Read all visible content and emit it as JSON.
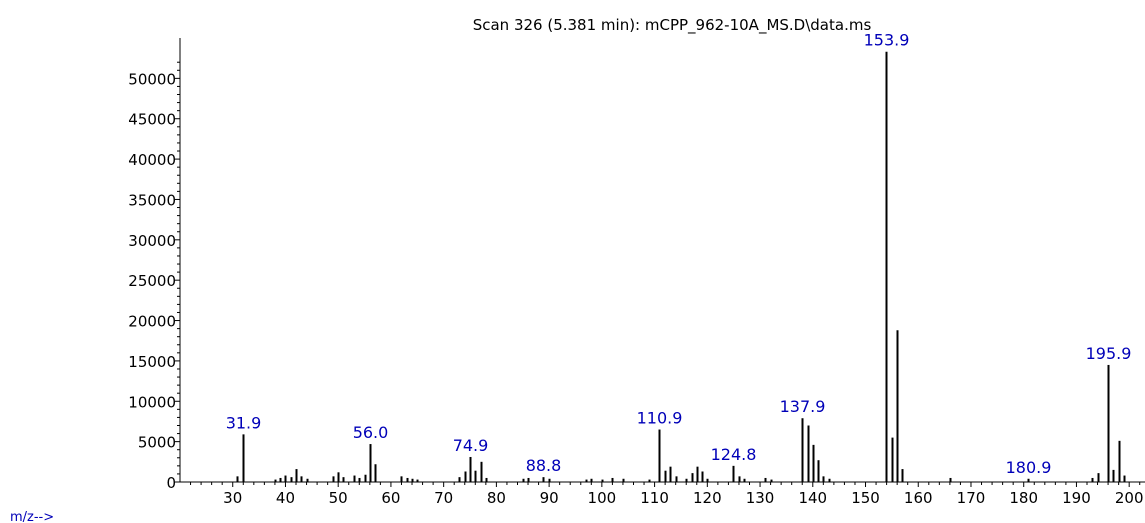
{
  "chart_data": {
    "type": "bar",
    "title": "Scan 326 (5.381 min): mCPP_962-10A_MS.D\\data.ms",
    "xlabel": "m/z-->",
    "ylabel": "",
    "xlim": [
      20,
      203
    ],
    "ylim": [
      0,
      55000
    ],
    "x_ticks": [
      30,
      40,
      50,
      60,
      70,
      80,
      90,
      100,
      110,
      120,
      130,
      140,
      150,
      160,
      170,
      180,
      190,
      200
    ],
    "y_ticks": [
      0,
      5000,
      10000,
      15000,
      20000,
      25000,
      30000,
      35000,
      40000,
      45000,
      50000
    ],
    "grid": false,
    "legend": "none",
    "colors": {
      "peaks": "#000000",
      "labels": "#0000b8",
      "axis": "#000000"
    },
    "series": [
      {
        "peaks": [
          {
            "x": 30.9,
            "y": 700
          },
          {
            "x": 31.9,
            "y": 5900,
            "label": "31.9"
          },
          {
            "x": 38.0,
            "y": 300
          },
          {
            "x": 39.0,
            "y": 500
          },
          {
            "x": 40.0,
            "y": 800
          },
          {
            "x": 41.0,
            "y": 600
          },
          {
            "x": 42.0,
            "y": 1600
          },
          {
            "x": 43.0,
            "y": 700
          },
          {
            "x": 44.0,
            "y": 400
          },
          {
            "x": 49.0,
            "y": 700
          },
          {
            "x": 50.0,
            "y": 1200
          },
          {
            "x": 51.0,
            "y": 600
          },
          {
            "x": 53.0,
            "y": 800
          },
          {
            "x": 54.0,
            "y": 500
          },
          {
            "x": 55.0,
            "y": 900
          },
          {
            "x": 56.0,
            "y": 4700,
            "label": "56.0"
          },
          {
            "x": 57.0,
            "y": 2200
          },
          {
            "x": 62.0,
            "y": 700
          },
          {
            "x": 63.0,
            "y": 500
          },
          {
            "x": 64.0,
            "y": 400
          },
          {
            "x": 65.0,
            "y": 300
          },
          {
            "x": 73.0,
            "y": 600
          },
          {
            "x": 74.0,
            "y": 1300
          },
          {
            "x": 74.9,
            "y": 3100,
            "label": "74.9"
          },
          {
            "x": 76.0,
            "y": 1400
          },
          {
            "x": 77.0,
            "y": 2500
          },
          {
            "x": 78.0,
            "y": 500
          },
          {
            "x": 85.0,
            "y": 400
          },
          {
            "x": 86.0,
            "y": 500
          },
          {
            "x": 88.8,
            "y": 600,
            "label": "88.8"
          },
          {
            "x": 90.0,
            "y": 400
          },
          {
            "x": 97.0,
            "y": 300
          },
          {
            "x": 98.0,
            "y": 400
          },
          {
            "x": 100.0,
            "y": 300
          },
          {
            "x": 102.0,
            "y": 500
          },
          {
            "x": 104.0,
            "y": 400
          },
          {
            "x": 109.0,
            "y": 300
          },
          {
            "x": 110.9,
            "y": 6500,
            "label": "110.9"
          },
          {
            "x": 112.0,
            "y": 1400
          },
          {
            "x": 113.0,
            "y": 1900
          },
          {
            "x": 114.0,
            "y": 700
          },
          {
            "x": 116.0,
            "y": 400
          },
          {
            "x": 117.0,
            "y": 1100
          },
          {
            "x": 118.0,
            "y": 1900
          },
          {
            "x": 119.0,
            "y": 1300
          },
          {
            "x": 120.0,
            "y": 400
          },
          {
            "x": 124.8,
            "y": 2000,
            "label": "124.8"
          },
          {
            "x": 126.0,
            "y": 700
          },
          {
            "x": 127.0,
            "y": 400
          },
          {
            "x": 131.0,
            "y": 500
          },
          {
            "x": 132.0,
            "y": 300
          },
          {
            "x": 137.9,
            "y": 7900,
            "label": "137.9"
          },
          {
            "x": 139.0,
            "y": 7000
          },
          {
            "x": 140.0,
            "y": 4600
          },
          {
            "x": 141.0,
            "y": 2700
          },
          {
            "x": 142.0,
            "y": 700
          },
          {
            "x": 143.0,
            "y": 400
          },
          {
            "x": 153.9,
            "y": 53300,
            "label": "153.9"
          },
          {
            "x": 155.0,
            "y": 5500
          },
          {
            "x": 156.0,
            "y": 18800
          },
          {
            "x": 157.0,
            "y": 1600
          },
          {
            "x": 166.0,
            "y": 500
          },
          {
            "x": 180.9,
            "y": 400,
            "label": "180.9"
          },
          {
            "x": 193.0,
            "y": 500
          },
          {
            "x": 194.0,
            "y": 1100
          },
          {
            "x": 195.9,
            "y": 14500,
            "label": "195.9"
          },
          {
            "x": 197.0,
            "y": 1500
          },
          {
            "x": 198.0,
            "y": 5100
          },
          {
            "x": 199.0,
            "y": 800
          }
        ]
      }
    ]
  }
}
